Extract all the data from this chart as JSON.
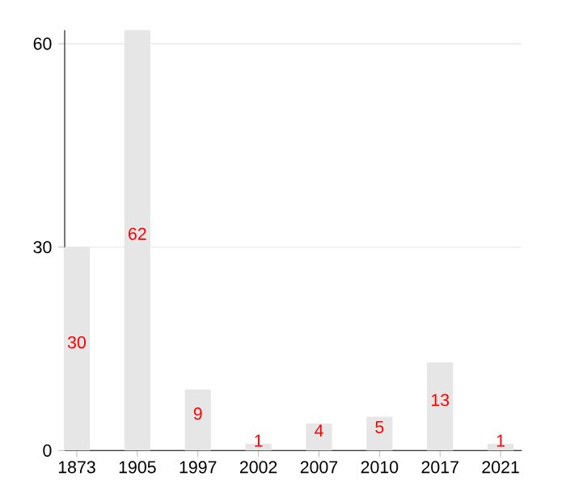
{
  "chart_data": {
    "type": "bar",
    "categories": [
      "1873",
      "1905",
      "1997",
      "2002",
      "2007",
      "2010",
      "2017",
      "2021"
    ],
    "values": [
      30,
      62,
      9,
      1,
      4,
      5,
      13,
      1
    ],
    "color": "#e6e6e6",
    "ylim": [
      0,
      62
    ],
    "yticks": [
      0,
      30,
      60
    ],
    "grid": "y",
    "data_labels": true
  }
}
